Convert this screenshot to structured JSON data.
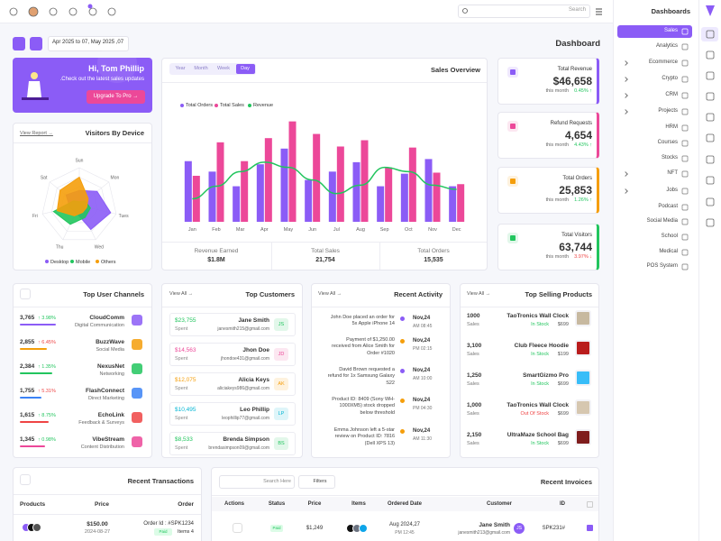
{
  "topbar": {
    "search": "Search"
  },
  "sidebar": {
    "title": "Dashboards",
    "items": [
      "Sales",
      "Analytics",
      "Ecommerce",
      "Crypto",
      "CRM",
      "Projects",
      "HRM",
      "Courses",
      "Stocks",
      "NFT",
      "Jobs",
      "Podcast",
      "Social Media",
      "School",
      "Medical",
      "POS System"
    ]
  },
  "toolbar": {
    "date_range": "Apr 2025 to 07, May 2025 ,07",
    "title": "Dashboard"
  },
  "welcome": {
    "greeting": "Hi, Tom Phillip",
    "text": ".Check out the latest sales updates",
    "button": "Upgrade To Pro →"
  },
  "visitors": {
    "title": "Visitors By Device",
    "link": "View Report →",
    "chart": {
      "type": "radar",
      "categories": [
        "Sun",
        "Mon",
        "Tues",
        "Wed",
        "Thu",
        "Fri",
        "Sat"
      ],
      "rlim": [
        0,
        100
      ],
      "series": [
        {
          "name": "Desktop",
          "color": "#8b5cf6",
          "values": [
            40,
            60,
            85,
            70,
            20,
            25,
            45
          ]
        },
        {
          "name": "Mobile",
          "color": "#22c55e",
          "values": [
            10,
            20,
            30,
            35,
            55,
            70,
            20
          ]
        },
        {
          "name": "Others",
          "color": "#f59e0b",
          "values": [
            75,
            30,
            20,
            20,
            30,
            60,
            65
          ]
        }
      ]
    }
  },
  "sales_overview": {
    "title": "Sales Overview",
    "tabs": [
      "Year",
      "Month",
      "Week",
      "Day"
    ],
    "chart": {
      "type": "bar",
      "categories": [
        "Jan",
        "Feb",
        "Mar",
        "Apr",
        "May",
        "Jun",
        "Jul",
        "Aug",
        "Sep",
        "Oct",
        "Nov",
        "Dec"
      ],
      "ylim": [
        0,
        100
      ],
      "series": [
        {
          "name": "Total Orders",
          "color": "#8b5cf6",
          "values": [
            58,
            48,
            34,
            55,
            70,
            40,
            48,
            57,
            34,
            46,
            60,
            34
          ]
        },
        {
          "name": "Total Sales",
          "color": "#ec4899",
          "values": [
            44,
            76,
            58,
            80,
            96,
            84,
            72,
            78,
            52,
            71,
            47,
            36
          ]
        },
        {
          "name": "Revenue",
          "color": "#22c55e",
          "type": "line",
          "values": [
            22,
            34,
            48,
            57,
            52,
            40,
            27,
            35,
            52,
            48,
            35,
            31
          ]
        }
      ]
    },
    "stats": [
      {
        "label": "Revenue Earned",
        "value": "$1.8M"
      },
      {
        "label": "Total Sales",
        "value": "21,754"
      },
      {
        "label": "Total Orders",
        "value": "15,535"
      }
    ]
  },
  "kpis": [
    {
      "label": "Total Revenue",
      "value": "$46,658",
      "note": "this month",
      "change": "0.45% ↑"
    },
    {
      "label": "Refund Requests",
      "value": "4,654",
      "note": "this month",
      "change": "4.43% ↑"
    },
    {
      "label": "Total Orders",
      "value": "25,853",
      "note": "this month",
      "change": "1.26% ↑"
    },
    {
      "label": "Total Visitors",
      "value": "63,744",
      "note": "this month",
      "change": "3.97% ↓"
    }
  ],
  "channels": {
    "title": "Top User Channels",
    "items": [
      {
        "name": "CloudComm",
        "category": "Digital Communication",
        "value": "3,765",
        "change": "↑ 3.98%"
      },
      {
        "name": "BuzzWave",
        "category": "Social Media",
        "value": "2,855",
        "change": "↑ 6.45%"
      },
      {
        "name": "NexusNet",
        "category": "Networking",
        "value": "2,384",
        "change": "↑ 1.35%"
      },
      {
        "name": "FlashConnect",
        "category": "Direct Marketing",
        "value": "1,755",
        "change": "↑ 5.31%"
      },
      {
        "name": "EchoLink",
        "category": "Feedback & Surveys",
        "value": "1,615",
        "change": "↑ 8.75%"
      },
      {
        "name": "VibeStream",
        "category": "Content Distribution",
        "value": "1,345",
        "change": "↑ 0.98%"
      }
    ]
  },
  "customers": {
    "title": "Top Customers",
    "link": "View All →",
    "items": [
      {
        "name": "Jane Smith",
        "email": "janesmith215@gmail.com",
        "amount": "$23,755",
        "amount_label": "Spent",
        "initials": "JS"
      },
      {
        "name": "Jhon Doe",
        "email": "jhondoe431@gmail.com",
        "amount": "$14,563",
        "amount_label": "Spent",
        "initials": "JD"
      },
      {
        "name": "Alicia Keys",
        "email": "aliciakeys986@gmail.com",
        "amount": "$12,075",
        "amount_label": "Spent",
        "initials": "AK"
      },
      {
        "name": "Leo Phillip",
        "email": "leophillip77@gmail.com",
        "amount": "$10,495",
        "amount_label": "Spent",
        "initials": "LP"
      },
      {
        "name": "Brenda Simpson",
        "email": "brendasimpson09@gmail.com",
        "amount": "$8,533",
        "amount_label": "Spent",
        "initials": "BS"
      }
    ]
  },
  "activity": {
    "title": "Recent Activity",
    "link": "View All →",
    "items": [
      {
        "text": "John Doe placed an order for 5x Apple iPhone 14",
        "date": "Nov,24",
        "time": "AM 08:45"
      },
      {
        "text": "Payment of $1,250.00 received from Alice Smith for Order #1020",
        "date": "Nov,24",
        "time": "PM 02:15"
      },
      {
        "text": "David Brown requested a refund for 1x Samsung Galaxy S22",
        "date": "Nov,24",
        "time": "AM 10:00"
      },
      {
        "text": "Product ID: 8409 (Sony WH-1000XM5) stock dropped below threshold",
        "date": "Nov,24",
        "time": "PM 04:30"
      },
      {
        "text": "Emma Johnson left a 5-star review on Product ID: 7816 (Dell XPS 13)",
        "date": "Nov,24",
        "time": "AM 11:30"
      }
    ]
  },
  "products": {
    "title": "Top Selling Products",
    "link": "View All →",
    "items": [
      {
        "name": "TaoTronics Wall Clock",
        "status": "In Stock",
        "price": "$699",
        "sales": "1000",
        "sales_label": "Sales"
      },
      {
        "name": "Club Fleece Hoodie",
        "status": "In Stock",
        "price": "$199",
        "sales": "3,100",
        "sales_label": "Sales"
      },
      {
        "name": "SmartGizmo Pro",
        "status": "In Stock",
        "price": "$699",
        "sales": "1,250",
        "sales_label": "Sales"
      },
      {
        "name": "TaoTronics Wall Clock",
        "status": "Out Of Stock",
        "price": "$699",
        "sales": "1,000",
        "sales_label": "Sales"
      },
      {
        "name": "UltraMaze School Bag",
        "status": "In Stock",
        "price": "$699",
        "sales": "2,150",
        "sales_label": "Sales"
      }
    ]
  },
  "transactions": {
    "title": "Recent Transactions",
    "columns": [
      "Products",
      "Price",
      "Order"
    ],
    "rows": [
      {
        "price": "$150.00",
        "date": "2024-08-27",
        "order": "Order Id : #SPK1234",
        "status": "Paid",
        "items": "Items 4"
      }
    ]
  },
  "invoices": {
    "title": "Recent Invoices",
    "search": "Search Here",
    "filter": "Filters",
    "columns": [
      "Actions",
      "Status",
      "Price",
      "Items",
      "Ordered Date",
      "Customer",
      "ID"
    ],
    "rows": [
      {
        "status": "Paid",
        "price": "$1,249",
        "date": "Aug 2024,27",
        "time": "PM 12:45",
        "customer": "Jane Smith",
        "email": "janesmith213@gmail.com",
        "initials": "JS",
        "id": "SPK231#"
      }
    ]
  }
}
